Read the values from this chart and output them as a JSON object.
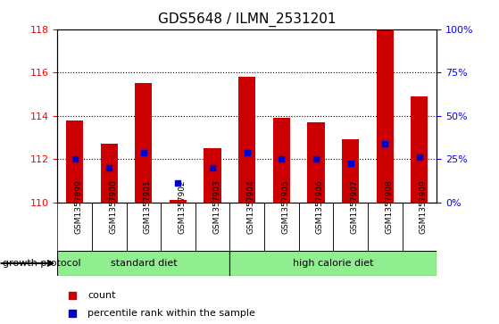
{
  "title": "GDS5648 / ILMN_2531201",
  "samples": [
    "GSM1357899",
    "GSM1357900",
    "GSM1357901",
    "GSM1357902",
    "GSM1357903",
    "GSM1357904",
    "GSM1357905",
    "GSM1357906",
    "GSM1357907",
    "GSM1357908",
    "GSM1357909"
  ],
  "bar_tops": [
    113.8,
    112.7,
    115.5,
    110.1,
    112.5,
    115.8,
    113.9,
    113.7,
    112.9,
    118.0,
    114.9
  ],
  "percentile_vals": [
    112.0,
    111.6,
    112.3,
    110.9,
    111.6,
    112.3,
    112.0,
    112.0,
    111.8,
    112.7,
    112.1
  ],
  "bar_bottom": 110.0,
  "ylim_left": [
    110,
    118
  ],
  "ylim_right": [
    0,
    100
  ],
  "yticks_left": [
    110,
    112,
    114,
    116,
    118
  ],
  "yticks_right": [
    0,
    25,
    50,
    75,
    100
  ],
  "ytick_labels_right": [
    "0%",
    "25%",
    "50%",
    "75%",
    "100%"
  ],
  "bar_color": "#cc0000",
  "percentile_color": "#0000cc",
  "standard_diet_label": "standard diet",
  "high_calorie_label": "high calorie diet",
  "group_label": "growth protocol",
  "legend_count": "count",
  "legend_percentile": "percentile rank within the sample",
  "bg_color_plot": "#ffffff",
  "bg_color_xlabel": "#c8c8c8",
  "bg_color_group": "#90ee90",
  "grid_dotted_ticks": [
    112,
    114,
    116
  ]
}
